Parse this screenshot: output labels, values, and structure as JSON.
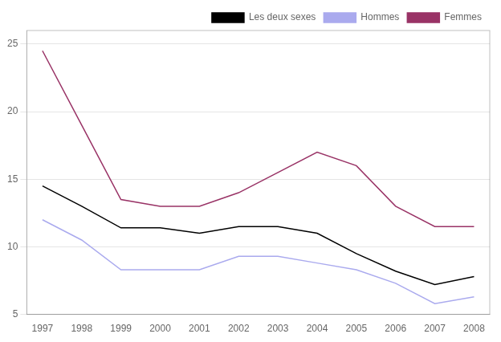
{
  "chart_data": {
    "type": "line",
    "x": [
      1997,
      1998,
      1999,
      2000,
      2001,
      2002,
      2003,
      2004,
      2005,
      2006,
      2007,
      2008
    ],
    "series": [
      {
        "name": "Les deux sexes",
        "color": "#000000",
        "values": [
          14.5,
          13.0,
          11.4,
          11.4,
          11.0,
          11.5,
          11.5,
          11.0,
          9.5,
          8.2,
          7.2,
          7.8
        ]
      },
      {
        "name": "Hommes",
        "color": "#aaaaee",
        "values": [
          12.0,
          10.5,
          8.3,
          8.3,
          8.3,
          9.3,
          9.3,
          8.8,
          8.3,
          7.3,
          5.8,
          6.3
        ]
      },
      {
        "name": "Femmes",
        "color": "#993366",
        "values": [
          24.5,
          19.0,
          13.5,
          13.0,
          13.0,
          14.0,
          15.5,
          17.0,
          16.0,
          13.0,
          11.5,
          11.5
        ]
      }
    ],
    "xlim": [
      1996.6,
      2008.4
    ],
    "xticks": [
      1997,
      1998,
      1999,
      2000,
      2001,
      2002,
      2003,
      2004,
      2005,
      2006,
      2007,
      2008
    ],
    "ylim": [
      5,
      26
    ],
    "yticks": [
      5,
      10,
      15,
      20,
      25
    ],
    "grid": "y",
    "legend": "upper-right"
  }
}
